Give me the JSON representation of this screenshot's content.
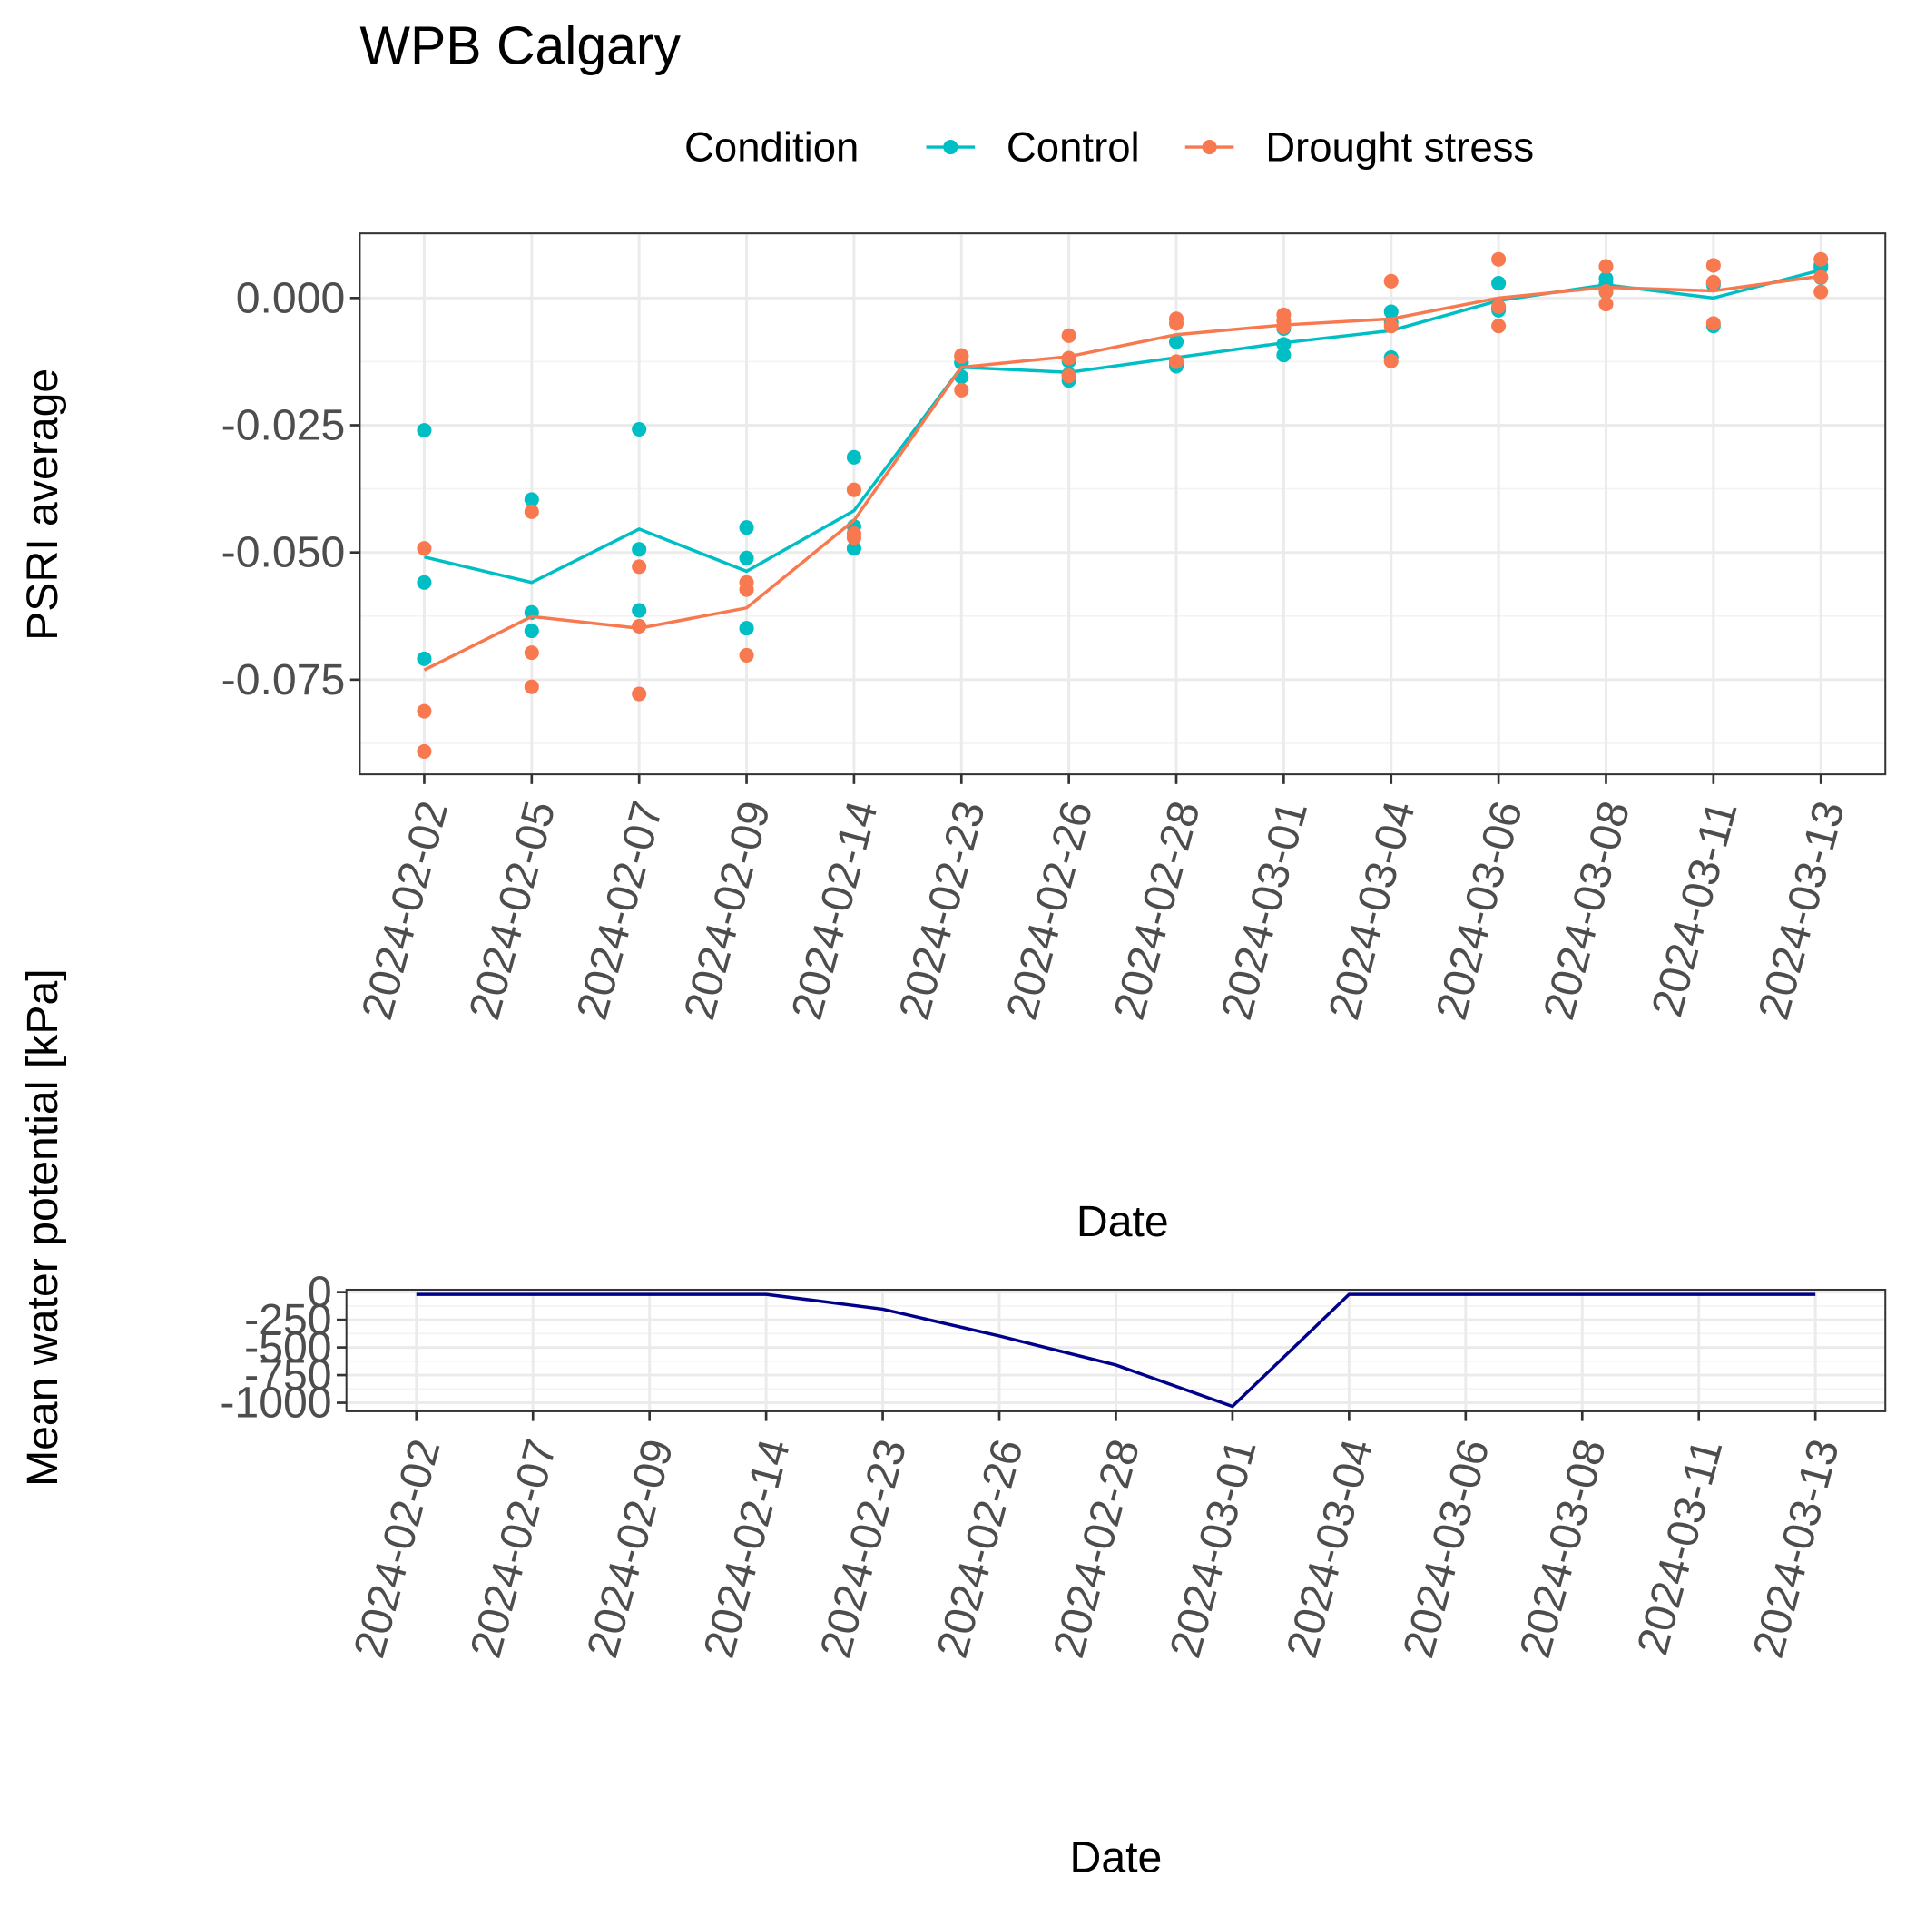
{
  "chart_data": [
    {
      "type": "line",
      "title": "WPB Calgary",
      "x_label": "Date",
      "y_label": "PSRI average",
      "legend_title": "Condition",
      "legend_position": "top",
      "grid": true,
      "categories": [
        "2024-02-02",
        "2024-02-05",
        "2024-02-07",
        "2024-02-09",
        "2024-02-14",
        "2024-02-23",
        "2024-02-26",
        "2024-02-28",
        "2024-03-01",
        "2024-03-04",
        "2024-03-06",
        "2024-03-08",
        "2024-03-11",
        "2024-03-13"
      ],
      "ylim": [
        -0.0936,
        0.0127
      ],
      "yticks": [
        {
          "value": -0.075,
          "label": "-0.075"
        },
        {
          "value": -0.05,
          "label": "-0.050"
        },
        {
          "value": -0.025,
          "label": "-0.025"
        },
        {
          "value": 0,
          "label": "0.000"
        }
      ],
      "series": [
        {
          "name": "Control",
          "color": "#00bfc4",
          "values": [
            -0.0509,
            -0.0559,
            -0.0454,
            -0.0537,
            -0.0418,
            -0.0136,
            -0.0146,
            -0.0117,
            -0.0088,
            -0.0064,
            -0.0005,
            0.0026,
            0.0,
            0.0055
          ],
          "points": [
            [
              -0.026,
              -0.0559,
              -0.0709
            ],
            [
              -0.0396,
              -0.0618,
              -0.0654
            ],
            [
              -0.0258,
              -0.0494,
              -0.0614
            ],
            [
              -0.0451,
              -0.0511,
              -0.0649
            ],
            [
              -0.0313,
              -0.0449,
              -0.0492
            ],
            [
              -0.0127,
              -0.0155,
              -0.0127
            ],
            [
              -0.0124,
              -0.0162,
              -0.015
            ],
            [
              -0.0086,
              -0.0134,
              -0.0131
            ],
            [
              -0.006,
              -0.0091,
              -0.0112
            ],
            [
              -0.0048,
              -0.0117,
              -0.0027
            ],
            [
              0.0029,
              -0.0024,
              -0.002
            ],
            [
              0.0038,
              0.0012,
              0.0028
            ],
            [
              0.0029,
              -0.0055,
              0.0026
            ],
            [
              0.0064,
              0.004,
              0.006
            ]
          ]
        },
        {
          "name": "Drought stress",
          "color": "#f8794f",
          "values": [
            -0.0731,
            -0.0626,
            -0.0649,
            -0.0609,
            -0.0437,
            -0.0136,
            -0.0115,
            -0.0072,
            -0.0053,
            -0.0041,
            0.0,
            0.0021,
            0.0014,
            0.0043
          ],
          "points": [
            [
              -0.0492,
              -0.0812,
              -0.0891
            ],
            [
              -0.042,
              -0.0697,
              -0.0764
            ],
            [
              -0.0528,
              -0.0645,
              -0.0778
            ],
            [
              -0.0559,
              -0.0573,
              -0.0702
            ],
            [
              -0.0377,
              -0.0463,
              -0.0471
            ],
            [
              -0.0115,
              -0.0181,
              -0.0113
            ],
            [
              -0.0074,
              -0.0153,
              -0.0118
            ],
            [
              -0.0041,
              -0.005,
              -0.0125
            ],
            [
              -0.0033,
              -0.0045,
              -0.0057
            ],
            [
              0.0033,
              -0.0055,
              -0.0124
            ],
            [
              0.0076,
              -0.0017,
              -0.0055
            ],
            [
              0.0062,
              -0.0012,
              0.0013
            ],
            [
              0.0064,
              0.0031,
              -0.005
            ],
            [
              0.0076,
              0.0012,
              0.0041
            ]
          ]
        }
      ]
    },
    {
      "type": "line",
      "x_label": "Date",
      "y_label": "Mean water potential [kPa]",
      "grid": true,
      "categories": [
        "2024-02-02",
        "2024-02-07",
        "2024-02-09",
        "2024-02-14",
        "2024-02-23",
        "2024-02-26",
        "2024-02-28",
        "2024-03-01",
        "2024-03-04",
        "2024-03-06",
        "2024-03-08",
        "2024-03-11",
        "2024-03-13"
      ],
      "ylim": [
        -1077,
        22
      ],
      "yticks": [
        -1000,
        -750,
        -500,
        -250,
        0
      ],
      "series": [
        {
          "color": "#00008b",
          "values": [
            -20,
            -20,
            -20,
            -20,
            -154,
            -396,
            -659,
            -1033,
            -20,
            -20,
            -20,
            -20,
            -20
          ]
        }
      ]
    }
  ]
}
